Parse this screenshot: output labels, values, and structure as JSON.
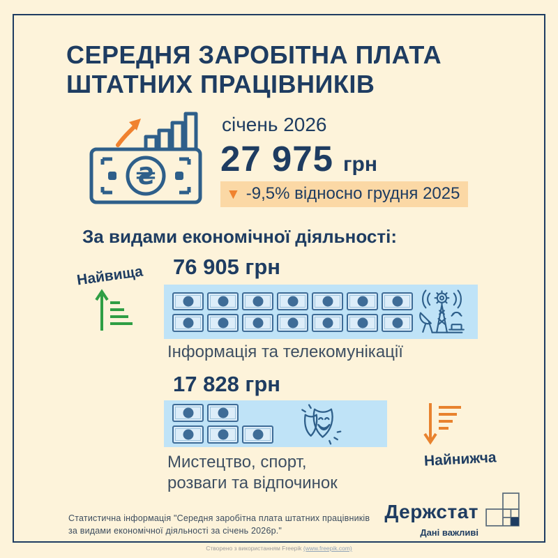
{
  "colors": {
    "background": "#fdf3da",
    "navy": "#1e3c61",
    "accent_orange": "#f0822f",
    "badge_bg": "#fbd8a5",
    "box_blue": "#bfe3f7",
    "green": "#2f9e44"
  },
  "title": {
    "line1": "СЕРЕДНЯ ЗАРОБІТНА ПЛАТА",
    "line2": "ШТАТНИХ ПРАЦІВНИКІВ"
  },
  "hero": {
    "period": "січень 2026",
    "amount": "27 975",
    "currency": "грн",
    "change_arrow": "▼",
    "change": "-9,5% відносно грудня 2025"
  },
  "section_heading": "За видами економічної діяльності:",
  "highest": {
    "tag": "Найвища",
    "amount": "76 905 грн",
    "banknote_rows": [
      7,
      7
    ],
    "category": "Інформація та телекомунікації"
  },
  "lowest": {
    "tag": "Найнижча",
    "amount": "17 828 грн",
    "banknote_rows": [
      2,
      3
    ],
    "category_line1": "Мистецтво, спорт,",
    "category_line2": "розваги та відпочинок"
  },
  "footer": {
    "note_line1": "Статистична інформація \"Середня заробітна плата штатних працівників",
    "note_line2": "за видами економічної діяльності за січень 2026р.\"",
    "logo": "Держстат",
    "tagline": "Дані важливі"
  },
  "attribution": {
    "prefix": "Створено з використанням Freepik ",
    "link": "(www.freepik.com)"
  },
  "chart_data": {
    "type": "bar",
    "title": "Середня заробітна плата штатних працівників, січень 2026",
    "categories": [
      "Інформація та телекомунікації",
      "Мистецтво, спорт, розваги та відпочинок"
    ],
    "values": [
      76905,
      17828
    ],
    "unit": "грн",
    "overall_average": 27975,
    "change_vs_december_2025_pct": -9.5,
    "legend_high": "Найвища",
    "legend_low": "Найнижча"
  }
}
